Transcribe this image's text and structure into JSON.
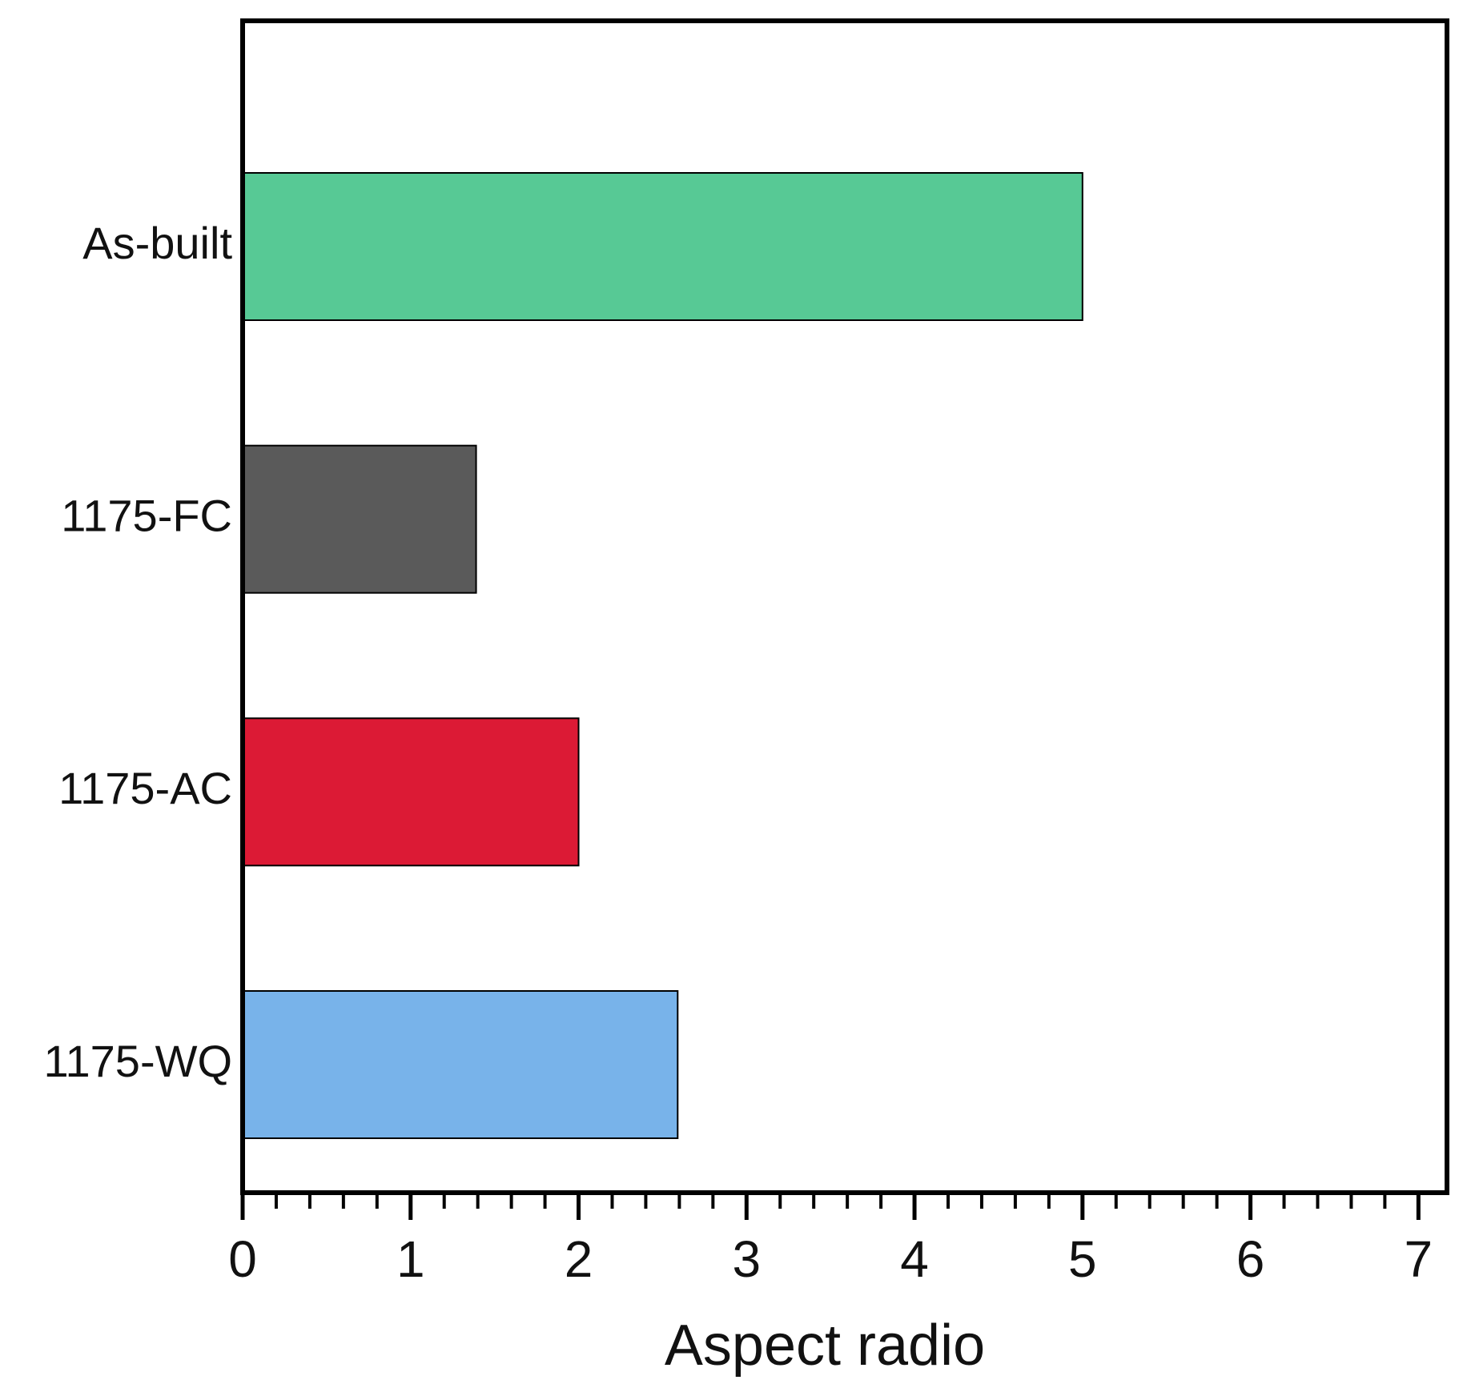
{
  "chart_data": {
    "type": "bar",
    "orientation": "horizontal",
    "x_label": "Aspect radio",
    "categories": [
      "As-built",
      "1175-FC",
      "1175-AC",
      "1175-WQ"
    ],
    "values": [
      5.0,
      1.39,
      2.0,
      2.59
    ],
    "colors": [
      "#57c995",
      "#5a5a5a",
      "#dc1a35",
      "#78b3ea"
    ],
    "xlim": [
      0,
      7.17
    ],
    "xticks": [
      0,
      1,
      2,
      3,
      4,
      5,
      6,
      7
    ],
    "xminorticks": [
      0.2,
      0.4,
      0.6,
      0.8,
      1.2,
      1.4,
      1.6,
      1.8,
      2.2,
      2.4,
      2.6,
      2.8,
      3.2,
      3.4,
      3.6,
      3.8,
      4.2,
      4.4,
      4.6,
      4.8,
      5.2,
      5.4,
      5.6,
      5.8,
      6.2,
      6.4,
      6.6,
      6.8,
      7.2
    ],
    "grid": false
  }
}
